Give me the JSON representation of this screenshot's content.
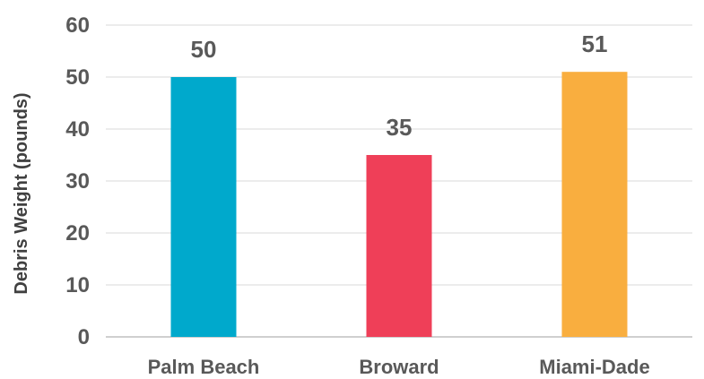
{
  "chart_data": {
    "type": "bar",
    "title": "",
    "xlabel": "",
    "ylabel": "Debris Weight (pounds)",
    "categories": [
      "Palm Beach",
      "Broward",
      "Miami-Dade"
    ],
    "values": [
      50,
      35,
      51
    ],
    "data_labels": [
      "50",
      "35",
      "51"
    ],
    "colors": [
      "#00a9cc",
      "#ef3f58",
      "#f9ae3f"
    ],
    "ylim": [
      0,
      60
    ],
    "yticks": [
      0,
      10,
      20,
      30,
      40,
      50,
      60
    ],
    "grid": true,
    "legend": "none"
  }
}
